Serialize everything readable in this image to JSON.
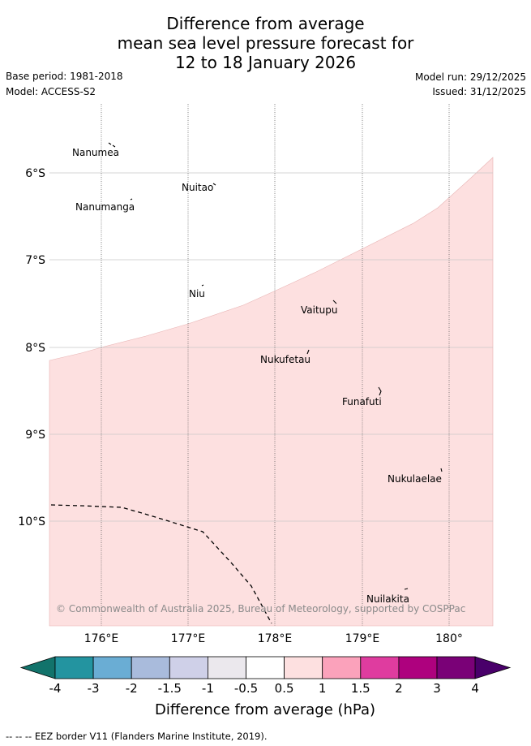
{
  "title": {
    "line1": "Difference from average",
    "line2": "mean sea level pressure forecast for",
    "line3": "12 to 18 January 2026"
  },
  "meta": {
    "base_period": "Base period: 1981-2018",
    "model": "Model: ACCESS-S2",
    "model_run": "Model run: 29/12/2025",
    "issued": "Issued: 31/12/2025"
  },
  "axes": {
    "lat_labels": [
      "6°S",
      "7°S",
      "8°S",
      "9°S",
      "10°S"
    ],
    "lon_labels": [
      "176°E",
      "177°E",
      "178°E",
      "179°E",
      "180°"
    ]
  },
  "places": [
    "Nanumea",
    "Nuitao",
    "Nanumanga",
    "Niu",
    "Vaitupu",
    "Nukufetau",
    "Funafuti",
    "Nukulaelae",
    "Nuilakita"
  ],
  "copyright": "© Commonwealth of Australia 2025, Bureau of Meteorology, supported by COSPPac",
  "colorbar": {
    "ticks": [
      "-4",
      "-3",
      "-2",
      "-1.5",
      "-1",
      "-0.5",
      "0.5",
      "1",
      "1.5",
      "2",
      "3",
      "4"
    ],
    "colors": [
      "#12736b",
      "#2394a0",
      "#6aadd4",
      "#a9bbdc",
      "#cfd0e8",
      "#ebe8ed",
      "#ffffff",
      "#fde0e0",
      "#fba2bb",
      "#df3c9f",
      "#ae017e",
      "#7a0177",
      "#49006a"
    ],
    "label": "Difference from average (hPa)"
  },
  "footer": "--  --  -- EEZ border V11 (Flanders Marine Institute, 2019)."
}
